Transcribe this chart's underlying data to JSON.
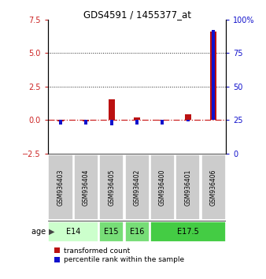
{
  "title": "GDS4591 / 1455377_at",
  "samples": [
    "GSM936403",
    "GSM936404",
    "GSM936405",
    "GSM936402",
    "GSM936400",
    "GSM936401",
    "GSM936406"
  ],
  "transformed_counts": [
    -0.08,
    -0.12,
    1.55,
    0.18,
    -0.05,
    0.42,
    6.6
  ],
  "percentile_ranks": [
    22,
    22,
    21,
    22,
    22,
    24,
    92
  ],
  "ylim_left": [
    -2.5,
    7.5
  ],
  "ylim_right": [
    0,
    100
  ],
  "yticks_left": [
    -2.5,
    0.0,
    2.5,
    5.0,
    7.5
  ],
  "yticks_right": [
    0,
    25,
    50,
    75,
    100
  ],
  "hlines_dotted": [
    2.5,
    5.0
  ],
  "bar_color_red": "#bb1111",
  "bar_color_blue": "#1111cc",
  "age_groups": [
    {
      "label": "E14",
      "start": 0,
      "end": 2,
      "color": "#ccffcc"
    },
    {
      "label": "E15",
      "start": 2,
      "end": 3,
      "color": "#77dd77"
    },
    {
      "label": "E16",
      "start": 3,
      "end": 4,
      "color": "#77dd77"
    },
    {
      "label": "E17.5",
      "start": 4,
      "end": 7,
      "color": "#44cc44"
    }
  ],
  "sample_bg_color": "#cccccc",
  "zero_line_color": "#cc2222",
  "grid_line_color": "#222222",
  "legend_red_label": "transformed count",
  "legend_blue_label": "percentile rank within the sample",
  "figsize": [
    3.38,
    3.54
  ],
  "dpi": 100
}
